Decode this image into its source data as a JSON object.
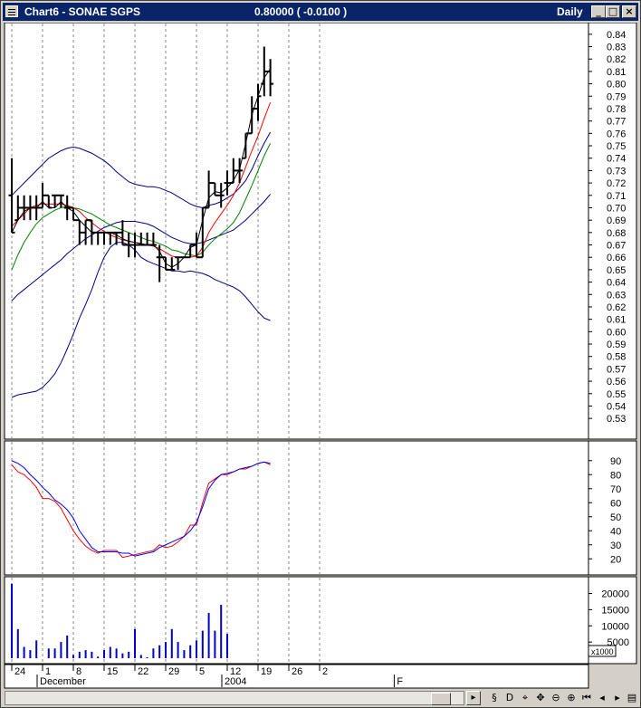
{
  "window": {
    "title": "Chart6 - SONAE SGPS",
    "price_display": "0.80000 ( -0.0100 )",
    "period": "Daily",
    "minimize_label": "_",
    "maximize_label": "□",
    "close_label": "×"
  },
  "chart_data": [
    {
      "type": "ohlc",
      "bar_color": "#000000",
      "y_ticks": [
        "0.84",
        "0.83",
        "0.82",
        "0.81",
        "0.80",
        "0.79",
        "0.78",
        "0.77",
        "0.76",
        "0.75",
        "0.74",
        "0.73",
        "0.72",
        "0.71",
        "0.70",
        "0.69",
        "0.68",
        "0.67",
        "0.66",
        "0.65",
        "0.64",
        "0.63",
        "0.62",
        "0.61",
        "0.60",
        "0.59",
        "0.58",
        "0.57",
        "0.56",
        "0.55",
        "0.54",
        "0.53"
      ],
      "ylim": [
        0.525,
        0.845
      ],
      "bars": [
        {
          "o": 0.71,
          "h": 0.74,
          "l": 0.68,
          "c": 0.68
        },
        {
          "o": 0.69,
          "h": 0.71,
          "l": 0.69,
          "c": 0.7
        },
        {
          "o": 0.7,
          "h": 0.71,
          "l": 0.69,
          "c": 0.7
        },
        {
          "o": 0.7,
          "h": 0.71,
          "l": 0.69,
          "c": 0.7
        },
        {
          "o": 0.7,
          "h": 0.71,
          "l": 0.69,
          "c": 0.7
        },
        {
          "o": 0.7,
          "h": 0.72,
          "l": 0.7,
          "c": 0.71
        },
        {
          "o": 0.71,
          "h": 0.71,
          "l": 0.7,
          "c": 0.7
        },
        {
          "o": 0.71,
          "h": 0.71,
          "l": 0.7,
          "c": 0.71
        },
        {
          "o": 0.71,
          "h": 0.71,
          "l": 0.7,
          "c": 0.71
        },
        {
          "o": 0.7,
          "h": 0.71,
          "l": 0.69,
          "c": 0.7
        },
        {
          "o": 0.7,
          "h": 0.7,
          "l": 0.69,
          "c": 0.69
        },
        {
          "o": 0.69,
          "h": 0.69,
          "l": 0.67,
          "c": 0.68
        },
        {
          "o": 0.68,
          "h": 0.69,
          "l": 0.67,
          "c": 0.69
        },
        {
          "o": 0.69,
          "h": 0.69,
          "l": 0.67,
          "c": 0.68
        },
        {
          "o": 0.68,
          "h": 0.68,
          "l": 0.67,
          "c": 0.68
        },
        {
          "o": 0.68,
          "h": 0.68,
          "l": 0.67,
          "c": 0.68
        },
        {
          "o": 0.68,
          "h": 0.68,
          "l": 0.67,
          "c": 0.68
        },
        {
          "o": 0.68,
          "h": 0.68,
          "l": 0.67,
          "c": 0.68
        },
        {
          "o": 0.68,
          "h": 0.69,
          "l": 0.67,
          "c": 0.67
        },
        {
          "o": 0.67,
          "h": 0.68,
          "l": 0.66,
          "c": 0.67
        },
        {
          "o": 0.67,
          "h": 0.68,
          "l": 0.66,
          "c": 0.67
        },
        {
          "o": 0.67,
          "h": 0.68,
          "l": 0.67,
          "c": 0.67
        },
        {
          "o": 0.67,
          "h": 0.68,
          "l": 0.67,
          "c": 0.67
        },
        {
          "o": 0.67,
          "h": 0.68,
          "l": 0.67,
          "c": 0.67
        },
        {
          "o": 0.66,
          "h": 0.67,
          "l": 0.64,
          "c": 0.66
        },
        {
          "o": 0.66,
          "h": 0.66,
          "l": 0.65,
          "c": 0.65
        },
        {
          "o": 0.65,
          "h": 0.66,
          "l": 0.65,
          "c": 0.65
        },
        {
          "o": 0.66,
          "h": 0.66,
          "l": 0.65,
          "c": 0.66
        },
        {
          "o": 0.66,
          "h": 0.66,
          "l": 0.66,
          "c": 0.66
        },
        {
          "o": 0.66,
          "h": 0.67,
          "l": 0.66,
          "c": 0.67
        },
        {
          "o": 0.67,
          "h": 0.68,
          "l": 0.66,
          "c": 0.66
        },
        {
          "o": 0.66,
          "h": 0.7,
          "l": 0.66,
          "c": 0.7
        },
        {
          "o": 0.7,
          "h": 0.73,
          "l": 0.7,
          "c": 0.72
        },
        {
          "o": 0.72,
          "h": 0.72,
          "l": 0.71,
          "c": 0.71
        },
        {
          "o": 0.71,
          "h": 0.72,
          "l": 0.7,
          "c": 0.71
        },
        {
          "o": 0.72,
          "h": 0.73,
          "l": 0.71,
          "c": 0.72
        },
        {
          "o": 0.72,
          "h": 0.74,
          "l": 0.72,
          "c": 0.73
        },
        {
          "o": 0.73,
          "h": 0.74,
          "l": 0.72,
          "c": 0.73
        },
        {
          "o": 0.74,
          "h": 0.76,
          "l": 0.74,
          "c": 0.76
        },
        {
          "o": 0.76,
          "h": 0.79,
          "l": 0.76,
          "c": 0.78
        },
        {
          "o": 0.78,
          "h": 0.8,
          "l": 0.77,
          "c": 0.79
        },
        {
          "o": 0.8,
          "h": 0.83,
          "l": 0.79,
          "c": 0.81
        },
        {
          "o": 0.81,
          "h": 0.82,
          "l": 0.79,
          "c": 0.8
        }
      ],
      "overlays": [
        {
          "color": "#000080",
          "values": [
            0.71,
            0.715,
            0.72,
            0.725,
            0.73,
            0.735,
            0.74,
            0.743,
            0.746,
            0.748,
            0.749,
            0.748,
            0.746,
            0.744,
            0.741,
            0.738,
            0.734,
            0.729,
            0.725,
            0.721,
            0.719,
            0.718,
            0.717,
            0.717,
            0.716,
            0.714,
            0.712,
            0.709,
            0.706,
            0.703,
            0.701,
            0.7,
            0.702,
            0.703,
            0.705,
            0.708,
            0.711,
            0.716,
            0.722,
            0.731,
            0.742,
            0.752,
            0.761
          ]
        },
        {
          "color": "#000080",
          "values": [
            0.625,
            0.63,
            0.634,
            0.638,
            0.642,
            0.646,
            0.65,
            0.654,
            0.658,
            0.663,
            0.667,
            0.671,
            0.675,
            0.678,
            0.681,
            0.684,
            0.686,
            0.688,
            0.689,
            0.689,
            0.689,
            0.688,
            0.687,
            0.685,
            0.682,
            0.679,
            0.676,
            0.674,
            0.672,
            0.671,
            0.671,
            0.672,
            0.674,
            0.676,
            0.678,
            0.68,
            0.682,
            0.686,
            0.69,
            0.695,
            0.7,
            0.705,
            0.711
          ]
        },
        {
          "color": "#000080",
          "values": [
            0.547,
            0.549,
            0.55,
            0.551,
            0.552,
            0.555,
            0.56,
            0.566,
            0.575,
            0.586,
            0.598,
            0.611,
            0.622,
            0.634,
            0.648,
            0.66,
            0.668,
            0.672,
            0.672,
            0.67,
            0.666,
            0.66,
            0.657,
            0.655,
            0.653,
            0.651,
            0.649,
            0.649,
            0.648,
            0.649,
            0.648,
            0.647,
            0.645,
            0.642,
            0.64,
            0.638,
            0.636,
            0.633,
            0.628,
            0.622,
            0.616,
            0.611,
            0.609
          ]
        },
        {
          "color": "#008000",
          "values": [
            0.65,
            0.662,
            0.672,
            0.68,
            0.687,
            0.692,
            0.695,
            0.698,
            0.7,
            0.701,
            0.7,
            0.699,
            0.697,
            0.695,
            0.692,
            0.689,
            0.686,
            0.684,
            0.682,
            0.68,
            0.678,
            0.676,
            0.674,
            0.673,
            0.671,
            0.669,
            0.666,
            0.665,
            0.663,
            0.662,
            0.661,
            0.664,
            0.67,
            0.675,
            0.679,
            0.683,
            0.688,
            0.696,
            0.707,
            0.718,
            0.73,
            0.742,
            0.752
          ]
        },
        {
          "color": "#ff0000",
          "values": [
            0.685,
            0.69,
            0.695,
            0.7,
            0.702,
            0.703,
            0.703,
            0.703,
            0.703,
            0.702,
            0.7,
            0.697,
            0.692,
            0.688,
            0.684,
            0.681,
            0.678,
            0.676,
            0.674,
            0.673,
            0.672,
            0.671,
            0.67,
            0.669,
            0.667,
            0.664,
            0.661,
            0.66,
            0.66,
            0.66,
            0.661,
            0.668,
            0.68,
            0.688,
            0.695,
            0.702,
            0.71,
            0.72,
            0.733,
            0.746,
            0.758,
            0.772,
            0.785
          ]
        },
        {
          "color": "#000000",
          "values": [
            0.68,
            0.69,
            0.697,
            0.7,
            0.7,
            0.705,
            0.7,
            0.7,
            0.705,
            0.7,
            0.697,
            0.69,
            0.685,
            0.68,
            0.68,
            0.68,
            0.68,
            0.678,
            0.675,
            0.673,
            0.672,
            0.671,
            0.67,
            0.67,
            0.665,
            0.655,
            0.652,
            0.655,
            0.66,
            0.668,
            0.67,
            0.69,
            0.708,
            0.713,
            0.712,
            0.716,
            0.722,
            0.731,
            0.752,
            0.775,
            0.79,
            0.805,
            0.812
          ]
        }
      ]
    },
    {
      "type": "line",
      "y_ticks": [
        "90",
        "80",
        "70",
        "60",
        "50",
        "40",
        "30",
        "20"
      ],
      "ylim": [
        15,
        95
      ],
      "series": [
        {
          "color": "#ff0000",
          "values": [
            87,
            82,
            80,
            76,
            71,
            63,
            63,
            61,
            56,
            48,
            40,
            34,
            29,
            26,
            24,
            26,
            26,
            26,
            21,
            22,
            23,
            24,
            25,
            26,
            30,
            28,
            29,
            32,
            36,
            44,
            44,
            60,
            74,
            77,
            80,
            80,
            82,
            84,
            84,
            86,
            88,
            89,
            87
          ]
        },
        {
          "color": "#0000ff",
          "values": [
            90,
            88,
            85,
            80,
            76,
            71,
            67,
            62,
            59,
            55,
            49,
            40,
            34,
            28,
            25,
            25,
            25,
            25,
            24,
            24,
            22,
            23,
            24,
            25,
            28,
            30,
            32,
            34,
            36,
            40,
            46,
            57,
            70,
            76,
            80,
            81,
            82,
            84,
            85,
            86,
            88,
            89,
            88
          ]
        }
      ]
    },
    {
      "type": "bar",
      "bar_color": "#0000cc",
      "unit_label": "x1000",
      "y_ticks": [
        "20000",
        "15000",
        "10000",
        "5000"
      ],
      "ylim": [
        0,
        23500
      ],
      "values": [
        23000,
        9000,
        3500,
        2500,
        5500,
        0,
        3000,
        3000,
        5000,
        7000,
        1000,
        2000,
        2500,
        2000,
        500,
        2500,
        3500,
        3000,
        1500,
        2000,
        9000,
        1000,
        300,
        3000,
        4000,
        5000,
        9000,
        5000,
        2500,
        4000,
        5500,
        8500,
        14000,
        8500,
        16500,
        7500,
        0,
        0,
        0,
        0,
        0,
        0,
        0
      ],
      "x_tick_labels": [
        "24",
        "1",
        "8",
        "15",
        "22",
        "29",
        "5",
        "12",
        "19",
        "26",
        "2"
      ],
      "month_labels": [
        "December",
        "2004",
        "F"
      ]
    }
  ]
}
